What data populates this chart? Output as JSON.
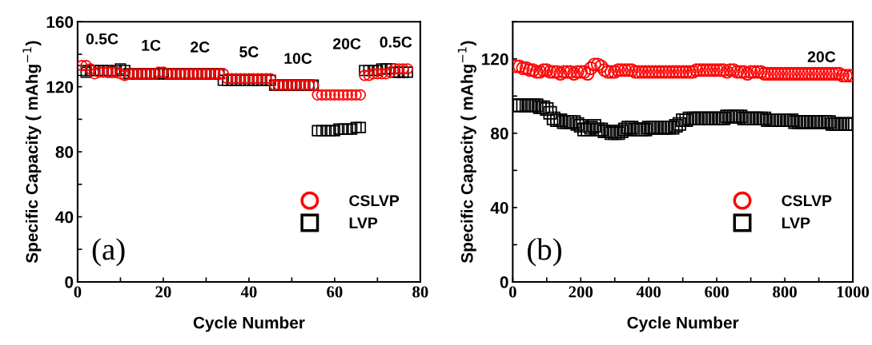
{
  "chart_data": [
    {
      "type": "scatter",
      "title": "(a)",
      "xlabel": "Cycle Number",
      "ylabel": "Specific Capacity ( mAhg$^{−1}$)",
      "xlim": [
        0,
        80
      ],
      "xticks": [
        0,
        {
          "value": 10,
          "label": null
        },
        20,
        {
          "value": 30,
          "label": null
        },
        40,
        {
          "value": 50,
          "label": null
        },
        60,
        {
          "value": 70,
          "label": null
        },
        80
      ],
      "ylim": [
        0,
        160
      ],
      "yticks": [
        0,
        {
          "value": 20,
          "label": null
        },
        40,
        {
          "value": 60,
          "label": null
        },
        80,
        {
          "value": 100,
          "label": null
        },
        120,
        {
          "value": 140,
          "label": null
        },
        160
      ],
      "legend": "lower right",
      "annotations": [
        "0.5C",
        "1C",
        "2C",
        "5C",
        "10C",
        "20C",
        "0.5C"
      ],
      "x": [
        1,
        2,
        3,
        4,
        5,
        6,
        7,
        8,
        9,
        10,
        11,
        12,
        13,
        14,
        15,
        16,
        17,
        18,
        19,
        20,
        21,
        22,
        23,
        24,
        25,
        26,
        27,
        28,
        29,
        30,
        31,
        32,
        33,
        34,
        35,
        36,
        37,
        38,
        39,
        40,
        41,
        42,
        43,
        44,
        45,
        46,
        47,
        48,
        49,
        50,
        51,
        52,
        53,
        54,
        55,
        56,
        57,
        58,
        59,
        60,
        61,
        62,
        63,
        64,
        65,
        66,
        67,
        68,
        69,
        70,
        71,
        72,
        73,
        74,
        75,
        76,
        77
      ],
      "series": [
        {
          "name": "CSLVP",
          "color": "#ff0000",
          "marker": "circle",
          "values": [
            133,
            133,
            131,
            128,
            129,
            129,
            129,
            129,
            129,
            128,
            127,
            128,
            128,
            128,
            128,
            128,
            128,
            128,
            129,
            129,
            128,
            128,
            128,
            128,
            128,
            128,
            128,
            128,
            128,
            128,
            128,
            128,
            128,
            128,
            125,
            125,
            125,
            125,
            125,
            125,
            125,
            125,
            125,
            125,
            125,
            121,
            121,
            121,
            121,
            121,
            121,
            121,
            121,
            121,
            121,
            115,
            115,
            115,
            115,
            115,
            115,
            115,
            115,
            115,
            115,
            115,
            127,
            127,
            128,
            128,
            128,
            128,
            129,
            131,
            131,
            131,
            131
          ]
        },
        {
          "name": "LVP",
          "color": "#000000",
          "marker": "square",
          "values": [
            130,
            129,
            130,
            130,
            130,
            130,
            130,
            129,
            130,
            131,
            130,
            128,
            128,
            128,
            128,
            128,
            128,
            128,
            128,
            128,
            128,
            128,
            128,
            128,
            128,
            128,
            128,
            128,
            128,
            128,
            128,
            128,
            128,
            124,
            124,
            124,
            124,
            124,
            124,
            124,
            124,
            124,
            124,
            124,
            124,
            121,
            121,
            121,
            121,
            121,
            121,
            121,
            121,
            121,
            121,
            93,
            93,
            93,
            93,
            93,
            94,
            94,
            94,
            94,
            95,
            95,
            130,
            130,
            130,
            130,
            131,
            131,
            131,
            129,
            129,
            129,
            129
          ]
        }
      ]
    },
    {
      "type": "scatter",
      "title": "(b)",
      "xlabel": "Cycle Number",
      "ylabel": "Specific Capacity ( mAhg$^{−1}$)",
      "xlim": [
        0,
        1000
      ],
      "xticks": [
        0,
        {
          "value": 100,
          "label": null
        },
        200,
        {
          "value": 300,
          "label": null
        },
        400,
        {
          "value": 500,
          "label": null
        },
        600,
        {
          "value": 700,
          "label": null
        },
        800,
        {
          "value": 900,
          "label": null
        },
        1000
      ],
      "ylim": [
        0,
        140
      ],
      "yticks": [
        0,
        {
          "value": 20,
          "label": null
        },
        40,
        {
          "value": 60,
          "label": null
        },
        80,
        {
          "value": 100,
          "label": null
        },
        120,
        {
          "value": 140,
          "label": null
        }
      ],
      "legend": "lower right",
      "annotations": [
        "20C"
      ],
      "x": [
        10,
        20,
        30,
        40,
        50,
        60,
        70,
        80,
        90,
        100,
        110,
        120,
        130,
        140,
        150,
        160,
        170,
        180,
        190,
        200,
        210,
        220,
        230,
        240,
        250,
        260,
        270,
        280,
        290,
        300,
        310,
        320,
        330,
        340,
        350,
        360,
        370,
        380,
        390,
        400,
        410,
        420,
        430,
        440,
        450,
        460,
        470,
        480,
        490,
        500,
        510,
        520,
        530,
        540,
        550,
        560,
        570,
        580,
        590,
        600,
        610,
        620,
        630,
        640,
        650,
        660,
        670,
        680,
        690,
        700,
        710,
        720,
        730,
        740,
        750,
        760,
        770,
        780,
        790,
        800,
        810,
        820,
        830,
        840,
        850,
        860,
        870,
        880,
        890,
        900,
        910,
        920,
        930,
        940,
        950,
        960,
        970,
        980,
        990,
        1000
      ],
      "series": [
        {
          "name": "CSLVP",
          "color": "#ff0000",
          "marker": "circle",
          "values": [
            116,
            116,
            115,
            115,
            114,
            114,
            113,
            113,
            114,
            114,
            113,
            113,
            113,
            112,
            113,
            113,
            113,
            112,
            113,
            113,
            113,
            112,
            115,
            117,
            117,
            116,
            114,
            113,
            113,
            113,
            114,
            114,
            114,
            114,
            114,
            113,
            113,
            113,
            113,
            113,
            113,
            113,
            113,
            113,
            113,
            113,
            113,
            113,
            113,
            113,
            113,
            113,
            113,
            114,
            114,
            114,
            114,
            114,
            114,
            114,
            114,
            114,
            113,
            114,
            114,
            113,
            113,
            113,
            112,
            113,
            113,
            113,
            113,
            112,
            112,
            112,
            112,
            112,
            112,
            112,
            112,
            112,
            112,
            112,
            112,
            112,
            112,
            112,
            112,
            112,
            112,
            112,
            112,
            112,
            112,
            112,
            111,
            111,
            111,
            111
          ]
        },
        {
          "name": "LVP",
          "color": "#000000",
          "marker": "square",
          "values": [
            95,
            95,
            95,
            95,
            95,
            95,
            95,
            94,
            94,
            93,
            91,
            88,
            87,
            87,
            86,
            86,
            86,
            86,
            85,
            84,
            82,
            82,
            83,
            84,
            82,
            82,
            81,
            81,
            80,
            80,
            80,
            81,
            82,
            83,
            83,
            82,
            82,
            82,
            82,
            83,
            83,
            83,
            83,
            83,
            83,
            83,
            83,
            84,
            85,
            87,
            87,
            88,
            88,
            88,
            88,
            88,
            88,
            88,
            88,
            88,
            88,
            88,
            89,
            89,
            89,
            89,
            89,
            88,
            88,
            88,
            88,
            88,
            88,
            88,
            87,
            87,
            87,
            87,
            87,
            87,
            87,
            87,
            86,
            86,
            86,
            86,
            86,
            86,
            86,
            86,
            86,
            86,
            86,
            85,
            85,
            85,
            85,
            85,
            85,
            85
          ]
        }
      ]
    }
  ]
}
